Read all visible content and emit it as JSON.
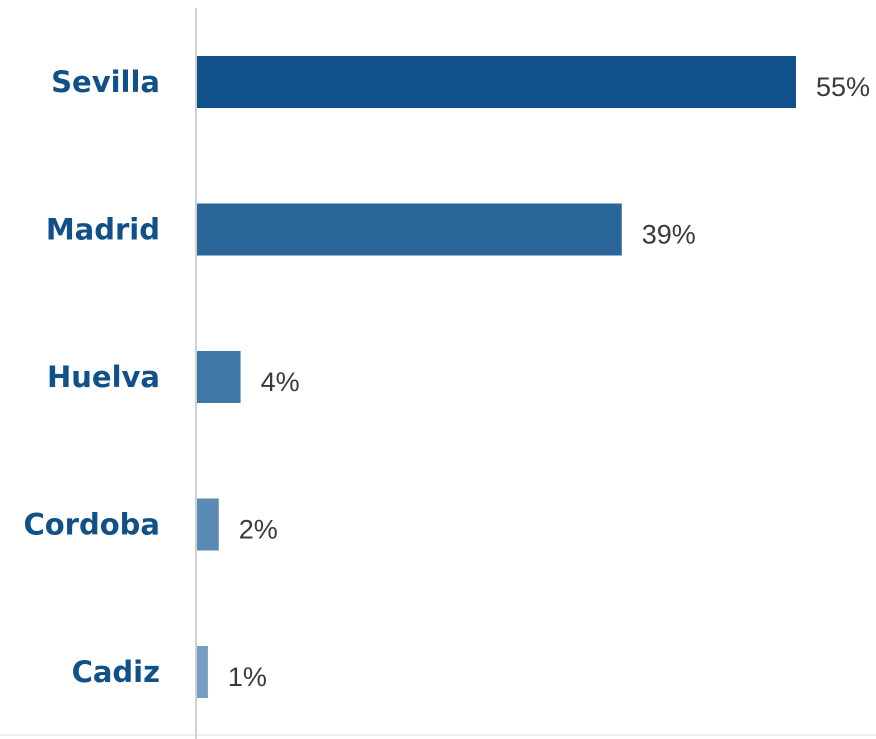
{
  "chart_data": {
    "type": "bar",
    "orientation": "horizontal",
    "categories": [
      "Sevilla",
      "Madrid",
      "Huelva",
      "Cordoba",
      "Cadiz"
    ],
    "values": [
      55,
      39,
      4,
      2,
      1
    ],
    "value_labels": [
      "55%",
      "39%",
      "4%",
      "2%",
      "1%"
    ],
    "unit": "%",
    "xlim": [
      0,
      55
    ],
    "grid": false,
    "legend": "none",
    "colors": [
      "#0f5188",
      "#2a6698",
      "#3f77a6",
      "#5a8bb4",
      "#759fc3"
    ]
  }
}
